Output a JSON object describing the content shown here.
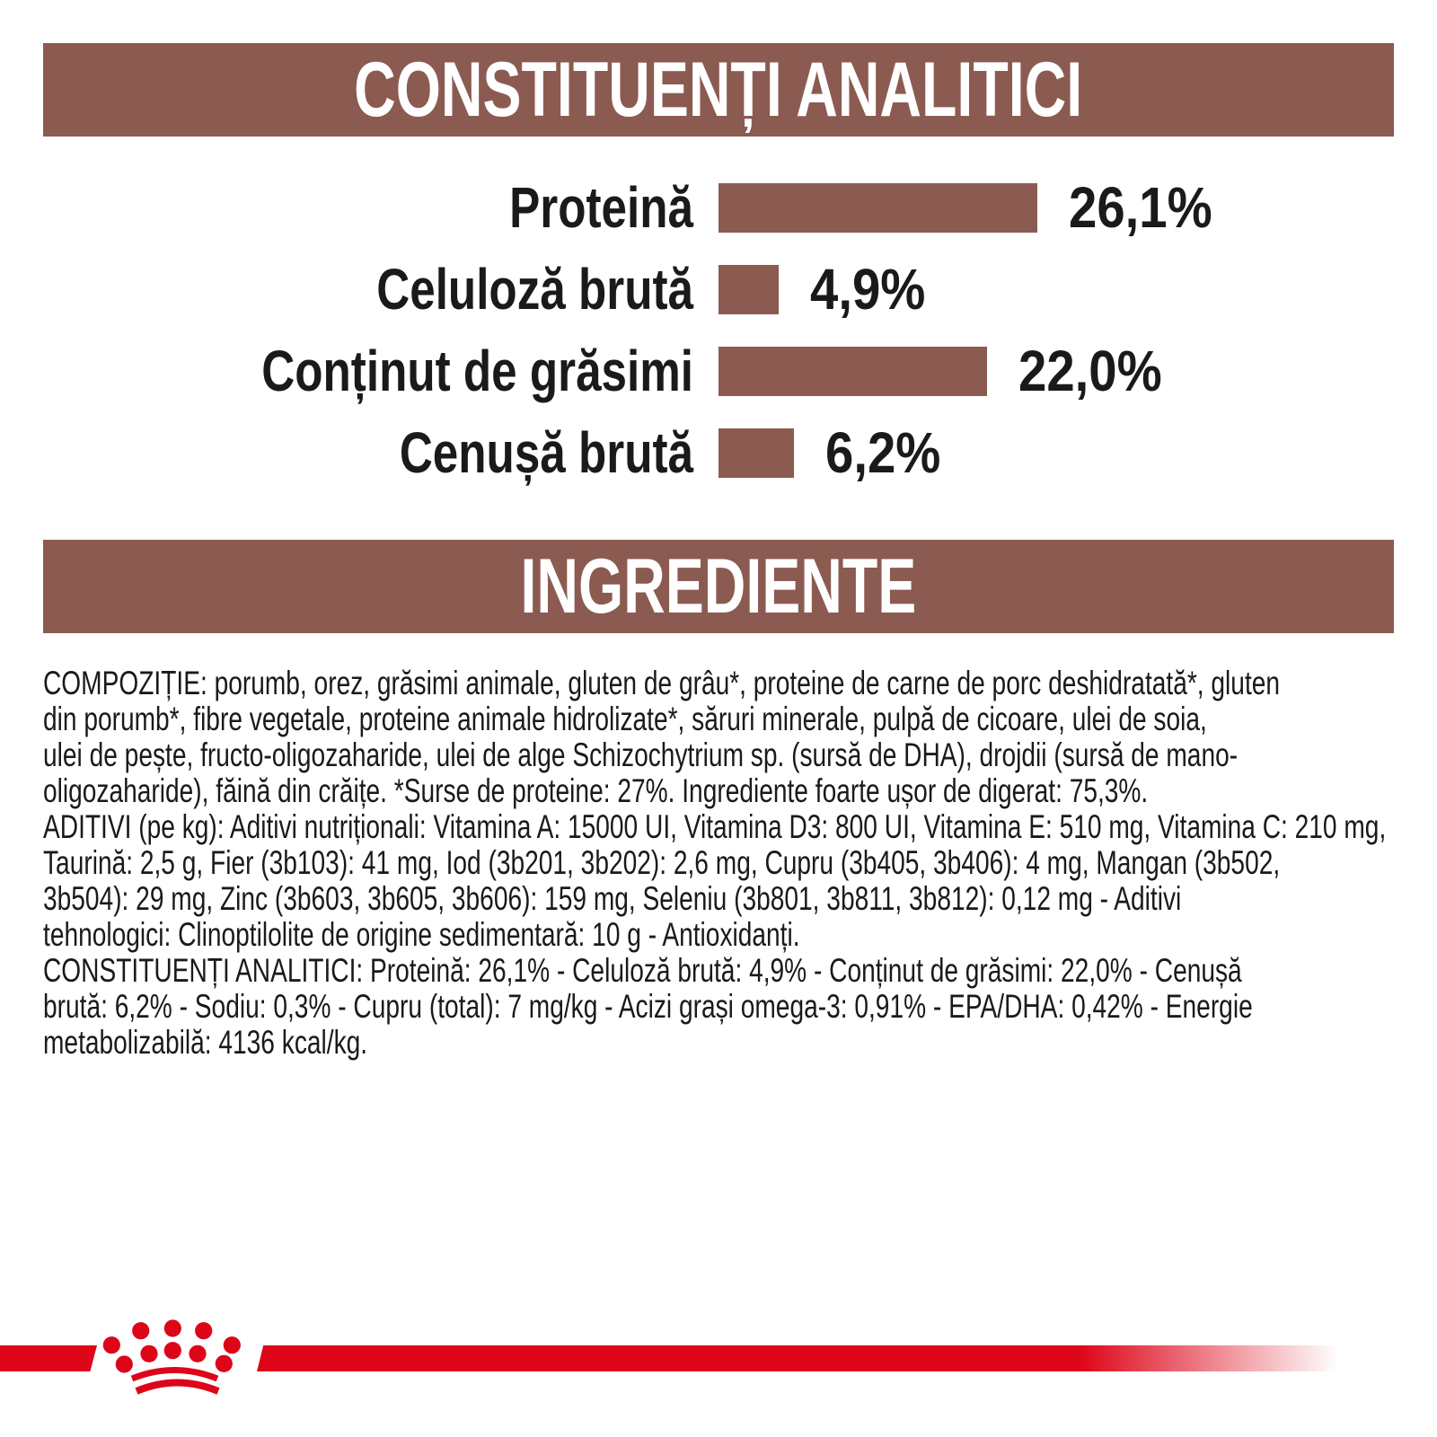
{
  "colors": {
    "banner_background": "#8b5b51",
    "banner_text": "#ffffff",
    "bar_color": "#8b5b51",
    "body_text": "#1a1a1a",
    "brand_red": "#dd0619"
  },
  "banners": {
    "analytical": "CONSTITUENȚI ANALITICI",
    "ingredients": "INGREDIENTE"
  },
  "chart_data": {
    "type": "bar",
    "orientation": "horizontal",
    "categories": [
      "Proteină",
      "Celuloză brută",
      "Conținut de grăsimi",
      "Cenușă brută"
    ],
    "values": [
      26.1,
      4.9,
      22.0,
      6.2
    ],
    "value_labels": [
      "26,1%",
      "4,9%",
      "22,0%",
      "6,2%"
    ],
    "xlim": [
      0,
      26.1
    ],
    "bar_color": "#8b5b51",
    "grid": false,
    "legend": false
  },
  "ingredients": {
    "composition": "COMPOZIȚIE: porumb, orez, grăsimi animale, gluten de grâu*, proteine de carne de porc deshidratată*, gluten\ndin porumb*, fibre vegetale, proteine animale hidrolizate*, săruri minerale, pulpă de cicoare, ulei de soia,\nulei de pește, fructo-oligozaharide, ulei de alge Schizochytrium sp. (sursă de DHA), drojdii (sursă de mano-\noligozaharide), făină din crăițe. *Surse de proteine: 27%. Ingrediente foarte ușor de digerat: 75,3%.",
    "additives": "ADITIVI (pe kg): Aditivi nutriționali: Vitamina A: 15000 UI, Vitamina D3: 800 UI, Vitamina E: 510 mg, Vitamina C: 210 mg,\nTaurină: 2,5 g, Fier (3b103): 41 mg, Iod (3b201, 3b202): 2,6 mg, Cupru (3b405, 3b406): 4 mg, Mangan (3b502,\n3b504): 29 mg, Zinc (3b603, 3b605, 3b606): 159 mg, Seleniu (3b801, 3b811, 3b812): 0,12 mg - Aditivi\ntehnologici: Clinoptilolite de origine sedimentară: 10 g - Antioxidanți.",
    "analytical": "CONSTITUENȚI ANALITICI: Proteină: 26,1% - Celuloză brută: 4,9% - Conținut de grăsimi: 22,0% - Cenușă\nbrută: 6,2% - Sodiu: 0,3% - Cupru (total): 7 mg/kg - Acizi grași omega-3: 0,91% - EPA/DHA: 0,42% - Energie\nmetabolizabilă: 4136 kcal/kg."
  },
  "branding": {
    "logo": "royal-canin-crown"
  }
}
